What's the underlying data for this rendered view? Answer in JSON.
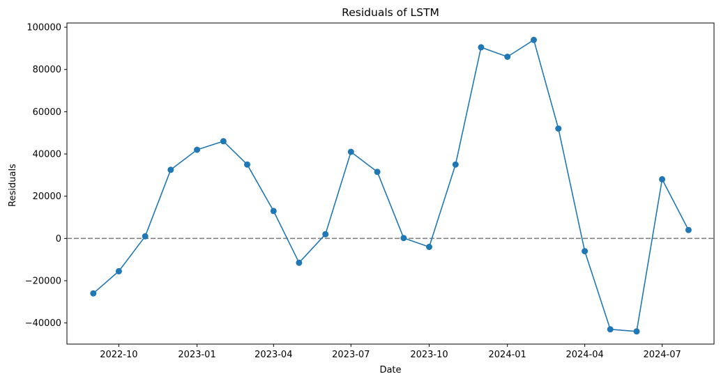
{
  "chart_data": {
    "type": "line",
    "title": "Residuals of LSTM",
    "xlabel": "Date",
    "ylabel": "Residuals",
    "ylim": [
      -50000,
      102000
    ],
    "xlim": [
      "2022-08-01",
      "2024-08-31"
    ],
    "yticks": [
      -40000,
      -20000,
      0,
      20000,
      40000,
      60000,
      80000,
      100000
    ],
    "ytick_labels": [
      "−40000",
      "−20000",
      "0",
      "20000",
      "40000",
      "60000",
      "80000",
      "100000"
    ],
    "xticks": [
      "2022-10-01",
      "2023-01-01",
      "2023-04-01",
      "2023-07-01",
      "2023-10-01",
      "2024-01-01",
      "2024-04-01",
      "2024-07-01"
    ],
    "xtick_labels": [
      "2022-10",
      "2023-01",
      "2023-04",
      "2023-07",
      "2023-10",
      "2024-01",
      "2024-04",
      "2024-07"
    ],
    "grid": false,
    "reference_line": {
      "y": 0,
      "style": "dashed",
      "color": "#808080"
    },
    "series": [
      {
        "color": "#1f77b4",
        "marker": "circle",
        "x": [
          "2022-09-01",
          "2022-10-01",
          "2022-11-01",
          "2022-12-01",
          "2023-01-01",
          "2023-02-01",
          "2023-03-01",
          "2023-04-01",
          "2023-05-01",
          "2023-06-01",
          "2023-07-01",
          "2023-08-01",
          "2023-09-01",
          "2023-10-01",
          "2023-11-01",
          "2023-12-01",
          "2024-01-01",
          "2024-02-01",
          "2024-03-01",
          "2024-04-01",
          "2024-05-01",
          "2024-06-01",
          "2024-07-01",
          "2024-08-01"
        ],
        "values": [
          -26000,
          -15500,
          1000,
          32500,
          42000,
          46000,
          35000,
          13000,
          -11500,
          2000,
          41000,
          31500,
          200,
          -4000,
          35000,
          90500,
          86000,
          94000,
          52000,
          -6000,
          -43000,
          -44000,
          28000,
          4000
        ]
      }
    ]
  }
}
